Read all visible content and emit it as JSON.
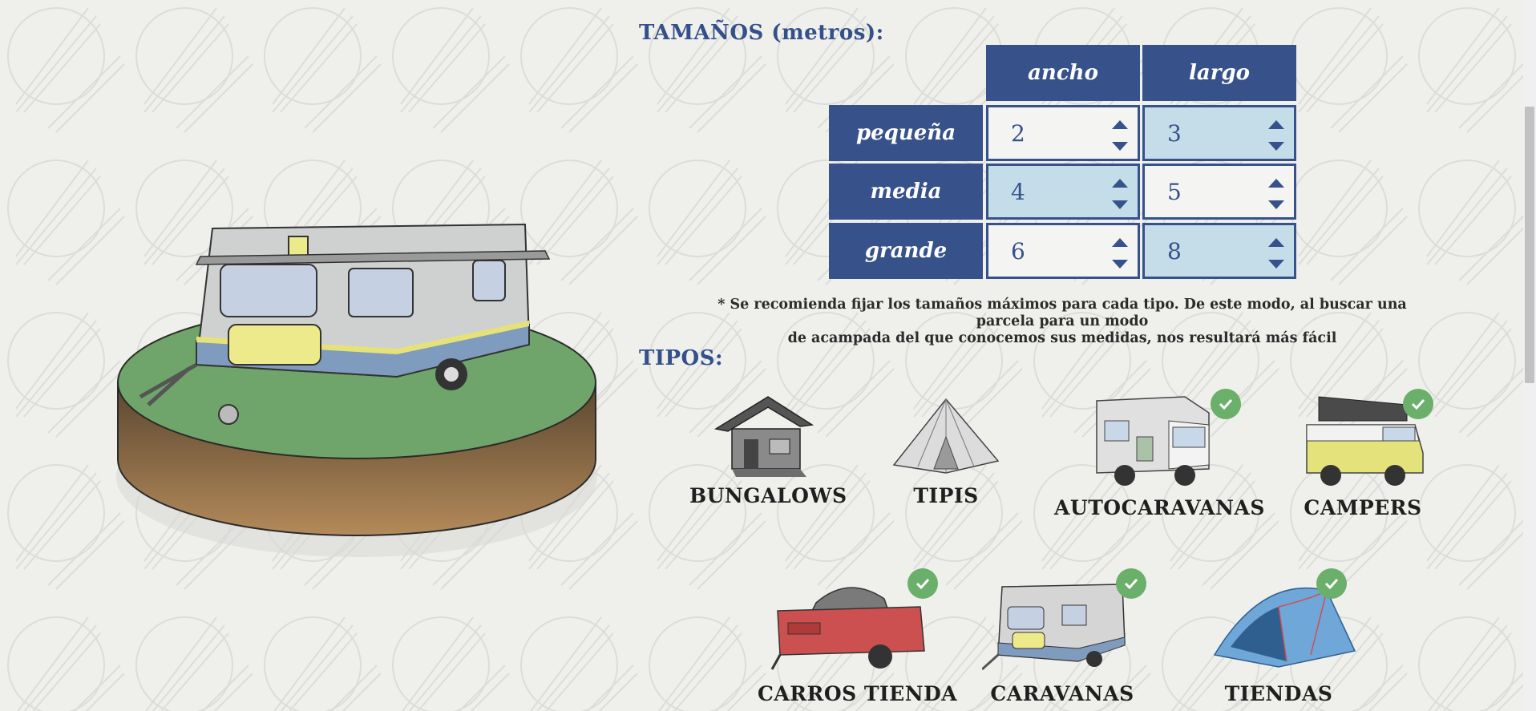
{
  "sizes": {
    "title": "TAMAÑOS (metros):",
    "columns": [
      "ancho",
      "largo"
    ],
    "rows": [
      {
        "label": "pequeña",
        "ancho": "2",
        "largo": "3"
      },
      {
        "label": "media",
        "ancho": "4",
        "largo": "5"
      },
      {
        "label": "grande",
        "ancho": "6",
        "largo": "8"
      }
    ],
    "note_line1": "* Se recomienda fijar los tamaños máximos para cada tipo. De este modo, al buscar una parcela para un modo",
    "note_line2": "de acampada del que conocemos sus medidas, nos resultará más fácil"
  },
  "types": {
    "title": "TIPOS:",
    "items": [
      {
        "label": "BUNGALOWS",
        "icon": "bungalow-icon",
        "selected": false
      },
      {
        "label": "TIPIS",
        "icon": "tipi-icon",
        "selected": false
      },
      {
        "label": "AUTOCARAVANAS",
        "icon": "motorhome-icon",
        "selected": true
      },
      {
        "label": "CAMPERS",
        "icon": "camper-van-icon",
        "selected": true
      },
      {
        "label": "CARROS TIENDA",
        "icon": "tent-trailer-icon",
        "selected": true
      },
      {
        "label": "CARAVANAS",
        "icon": "caravan-icon",
        "selected": true
      },
      {
        "label": "TIENDAS",
        "icon": "dome-tent-icon",
        "selected": true
      }
    ]
  },
  "colors": {
    "accent": "#37518b",
    "highlight": "#c5dde9",
    "check": "#6aaf6a",
    "background": "#efefec"
  }
}
